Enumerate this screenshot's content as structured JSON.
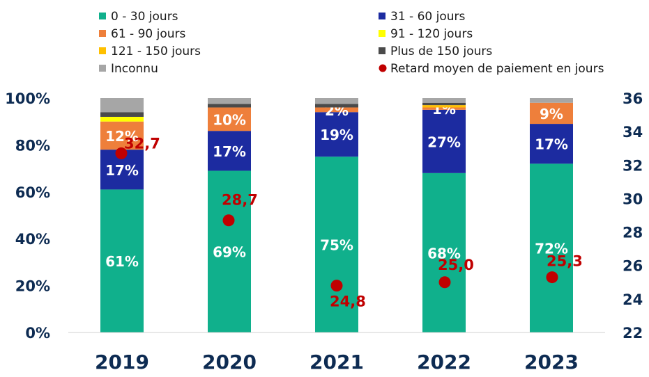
{
  "chart_data": {
    "type": "bar",
    "stacked": true,
    "categories": [
      "2019",
      "2020",
      "2021",
      "2022",
      "2023"
    ],
    "left_axis": {
      "min": 0,
      "max": 100,
      "ticks": [
        "0%",
        "20%",
        "40%",
        "60%",
        "80%",
        "100%"
      ]
    },
    "right_axis": {
      "min": 22,
      "max": 36,
      "ticks": [
        "22",
        "24",
        "26",
        "28",
        "30",
        "32",
        "34",
        "36"
      ]
    },
    "series": [
      {
        "name": "0 - 30 jours",
        "color": "#10b08c",
        "values": [
          61,
          69,
          75,
          68,
          72
        ],
        "labels": [
          "61%",
          "69%",
          "75%",
          "68%",
          "72%"
        ]
      },
      {
        "name": "31 - 60 jours",
        "color": "#1c2ba0",
        "values": [
          17,
          17,
          19,
          27,
          17
        ],
        "labels": [
          "17%",
          "17%",
          "19%",
          "27%",
          "17%"
        ]
      },
      {
        "name": "61 - 90 jours",
        "color": "#ee7f3b",
        "values": [
          12,
          10,
          2,
          1,
          9
        ],
        "labels": [
          "12%",
          "10%",
          "2%",
          "1%",
          "9%"
        ]
      },
      {
        "name": "91 - 120 jours",
        "color": "#ffff00",
        "values": [
          2,
          0,
          0,
          0,
          0
        ],
        "labels": [
          "",
          "",
          "",
          "",
          ""
        ]
      },
      {
        "name": "121 - 150 jours",
        "color": "#ffc000",
        "values": [
          0,
          0,
          0,
          1,
          0
        ],
        "labels": [
          "",
          "",
          "",
          "",
          ""
        ]
      },
      {
        "name": "Plus de 150 jours",
        "color": "#4a4a4a",
        "values": [
          2,
          1.5,
          1.5,
          1,
          0
        ],
        "labels": [
          "",
          "",
          "",
          "",
          ""
        ]
      },
      {
        "name": "Inconnu",
        "color": "#a6a6a6",
        "values": [
          6,
          2.5,
          2.5,
          2,
          2
        ],
        "labels": [
          "",
          "",
          "",
          "",
          ""
        ]
      }
    ],
    "dot_series": {
      "name": "Retard moyen de paiement en jours",
      "color": "#c00000",
      "axis": "right",
      "values": [
        32.7,
        28.7,
        24.8,
        25.0,
        25.3
      ],
      "labels": [
        "32,7",
        "28,7",
        "24,8",
        "25,0",
        "25,3"
      ]
    },
    "legend_position": "top",
    "grid": false
  }
}
